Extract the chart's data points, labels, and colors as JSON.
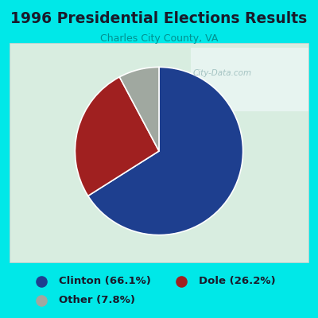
{
  "title": "1996 Presidential Elections Results",
  "subtitle": "Charles City County, VA",
  "slices": [
    66.1,
    26.2,
    7.8
  ],
  "labels": [
    "Clinton (66.1%)",
    "Dole (26.2%)",
    "Other (7.8%)"
  ],
  "colors": [
    "#1e3f8f",
    "#a02020",
    "#a0a8a0"
  ],
  "startangle": 90,
  "background_outer": "#00e8e8",
  "background_inner_main": "#d8ede0",
  "title_color": "#1a1a2a",
  "subtitle_color": "#009090",
  "legend_text_color": "#1a1a2a",
  "watermark": "City-Data.com",
  "watermark_color": "#99bbbb"
}
